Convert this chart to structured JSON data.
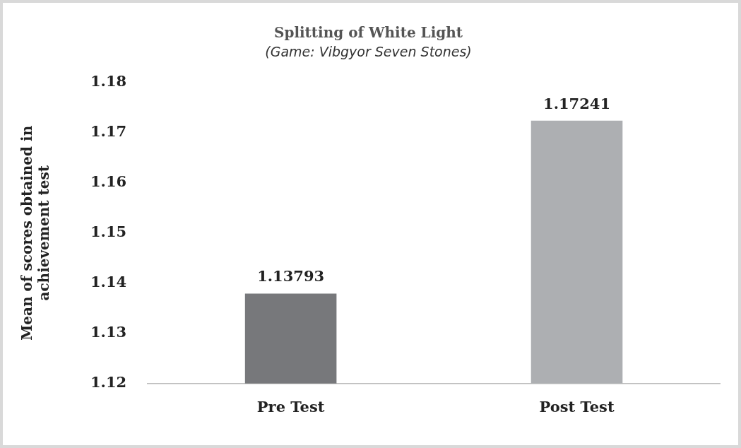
{
  "chart_data": {
    "type": "bar",
    "title": "Splitting of White Light",
    "subtitle": "(Game: Vibgyor Seven Stones)",
    "ylabel": "Mean of scores obtained in achievement test",
    "categories": [
      "Pre Test",
      "Post Test"
    ],
    "values": [
      1.13793,
      1.17241
    ],
    "colors": [
      "#77787b",
      "#adafb2"
    ],
    "ylim": [
      1.12,
      1.18
    ],
    "yticks": [
      1.12,
      1.13,
      1.14,
      1.15,
      1.16,
      1.17,
      1.18
    ],
    "data_labels": true,
    "grid": false,
    "legend": false
  }
}
